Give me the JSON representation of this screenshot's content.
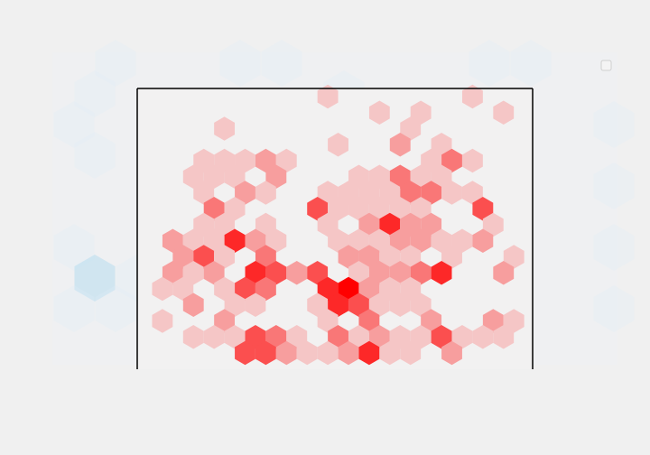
{
  "chart_data": [
    {
      "type": "heatmap",
      "subtype": "hexbin",
      "title": "",
      "xlabel": "",
      "ylabel": "",
      "grid": false,
      "legend": "hidden",
      "colormap": [
        "#dfeef7",
        "#b6dcef"
      ],
      "max_opacity": 0.55,
      "counts": [
        [
          0,
          1,
          0,
          0,
          1,
          1,
          0,
          0,
          0,
          0,
          1,
          1,
          0,
          0,
          0
        ],
        [
          1,
          0,
          0,
          0,
          0,
          0,
          1,
          0,
          0,
          0,
          0,
          0,
          0,
          1,
          0
        ],
        [
          1,
          0,
          0,
          0,
          0,
          0,
          0,
          0,
          0,
          0,
          0,
          0,
          0,
          1,
          1
        ],
        [
          1,
          0,
          0,
          0,
          0,
          0,
          0,
          0,
          0,
          0,
          0,
          0,
          0,
          1,
          0
        ],
        [
          0,
          0,
          0,
          0,
          0,
          0,
          0,
          0,
          0,
          0,
          0,
          0,
          0,
          1,
          1
        ],
        [
          0,
          0,
          0,
          0,
          0,
          0,
          0,
          0,
          0,
          0,
          0,
          0,
          0,
          1,
          0
        ],
        [
          1,
          0,
          1,
          0,
          0,
          0,
          0,
          0,
          0,
          0,
          0,
          0,
          0,
          1,
          1
        ],
        [
          2,
          1,
          0,
          0,
          0,
          0,
          0,
          0,
          0,
          0,
          0,
          0,
          0,
          1,
          2
        ],
        [
          1,
          1,
          0,
          0,
          0,
          0,
          0,
          0,
          0,
          0,
          0,
          0,
          0,
          1,
          1
        ],
        [
          0,
          0,
          0,
          0,
          0,
          0,
          0,
          0,
          0,
          0,
          0,
          0,
          0,
          1,
          0
        ]
      ]
    },
    {
      "type": "heatmap",
      "subtype": "hexbin",
      "title": "",
      "xlabel": "",
      "ylabel": "",
      "grid": false,
      "legend": "hidden",
      "colormap": [
        "#f5c6c6",
        "#ff0000"
      ],
      "counts": [
        [
          0,
          0,
          0,
          0,
          0,
          0,
          0,
          0,
          0,
          1,
          0,
          0,
          0,
          0,
          0,
          0,
          1,
          0,
          0
        ],
        [
          0,
          0,
          0,
          0,
          0,
          0,
          0,
          0,
          0,
          0,
          0,
          1,
          0,
          1,
          0,
          0,
          0,
          1,
          0
        ],
        [
          0,
          0,
          0,
          0,
          1,
          0,
          0,
          0,
          0,
          0,
          0,
          0,
          0,
          1,
          0,
          0,
          0,
          0,
          0
        ],
        [
          0,
          0,
          0,
          0,
          0,
          0,
          0,
          0,
          0,
          1,
          0,
          0,
          2,
          0,
          1,
          0,
          0,
          0,
          0
        ],
        [
          0,
          0,
          0,
          1,
          1,
          1,
          2,
          1,
          0,
          0,
          0,
          0,
          0,
          0,
          1,
          3,
          1,
          0,
          0
        ],
        [
          0,
          0,
          1,
          1,
          1,
          0,
          2,
          0,
          0,
          0,
          1,
          1,
          3,
          1,
          1,
          0,
          0,
          0,
          0
        ],
        [
          0,
          0,
          0,
          1,
          0,
          2,
          1,
          0,
          0,
          1,
          1,
          1,
          1,
          3,
          3,
          1,
          1,
          0,
          0
        ],
        [
          0,
          0,
          0,
          3,
          1,
          0,
          0,
          0,
          4,
          1,
          1,
          1,
          1,
          1,
          0,
          0,
          4,
          0,
          0
        ],
        [
          0,
          0,
          0,
          1,
          1,
          0,
          1,
          0,
          0,
          1,
          0,
          2,
          5,
          2,
          2,
          0,
          0,
          1,
          0
        ],
        [
          0,
          2,
          1,
          1,
          5,
          2,
          1,
          0,
          0,
          1,
          1,
          1,
          2,
          2,
          1,
          1,
          2,
          0,
          0
        ],
        [
          0,
          0,
          2,
          4,
          1,
          0,
          3,
          0,
          0,
          0,
          2,
          2,
          1,
          1,
          0,
          1,
          0,
          0,
          1
        ],
        [
          0,
          2,
          1,
          2,
          0,
          5,
          4,
          2,
          4,
          0,
          1,
          2,
          2,
          3,
          5,
          0,
          0,
          2,
          0
        ],
        [
          0,
          1,
          1,
          0,
          1,
          4,
          3,
          0,
          0,
          5,
          6,
          2,
          1,
          1,
          0,
          0,
          0,
          0,
          0
        ],
        [
          0,
          0,
          2,
          0,
          1,
          1,
          0,
          0,
          1,
          5,
          4,
          1,
          1,
          1,
          0,
          0,
          0,
          0,
          0
        ],
        [
          0,
          1,
          0,
          0,
          2,
          0,
          0,
          0,
          0,
          1,
          0,
          3,
          0,
          0,
          2,
          0,
          0,
          2,
          1
        ],
        [
          0,
          0,
          1,
          1,
          1,
          4,
          3,
          1,
          0,
          3,
          1,
          2,
          1,
          1,
          4,
          1,
          1,
          1,
          1
        ],
        [
          0,
          0,
          0,
          0,
          0,
          4,
          4,
          2,
          1,
          1,
          2,
          5,
          1,
          1,
          0,
          2,
          0,
          0,
          0
        ]
      ]
    }
  ]
}
